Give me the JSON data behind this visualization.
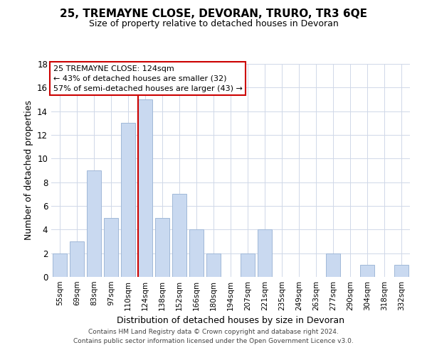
{
  "title": "25, TREMAYNE CLOSE, DEVORAN, TRURO, TR3 6QE",
  "subtitle": "Size of property relative to detached houses in Devoran",
  "xlabel": "Distribution of detached houses by size in Devoran",
  "ylabel": "Number of detached properties",
  "bar_labels": [
    "55sqm",
    "69sqm",
    "83sqm",
    "97sqm",
    "110sqm",
    "124sqm",
    "138sqm",
    "152sqm",
    "166sqm",
    "180sqm",
    "194sqm",
    "207sqm",
    "221sqm",
    "235sqm",
    "249sqm",
    "263sqm",
    "277sqm",
    "290sqm",
    "304sqm",
    "318sqm",
    "332sqm"
  ],
  "bar_values": [
    2,
    3,
    9,
    5,
    13,
    15,
    5,
    7,
    4,
    2,
    0,
    2,
    4,
    0,
    0,
    0,
    2,
    0,
    1,
    0,
    1
  ],
  "bar_color": "#c9d9f0",
  "bar_edge_color": "#a0b8d8",
  "highlight_index": 5,
  "highlight_line_color": "#cc0000",
  "annotation_title": "25 TREMAYNE CLOSE: 124sqm",
  "annotation_line1": "← 43% of detached houses are smaller (32)",
  "annotation_line2": "57% of semi-detached houses are larger (43) →",
  "annotation_box_color": "#ffffff",
  "annotation_box_edge_color": "#cc0000",
  "ylim": [
    0,
    18
  ],
  "yticks": [
    0,
    2,
    4,
    6,
    8,
    10,
    12,
    14,
    16,
    18
  ],
  "footer_line1": "Contains HM Land Registry data © Crown copyright and database right 2024.",
  "footer_line2": "Contains public sector information licensed under the Open Government Licence v3.0."
}
